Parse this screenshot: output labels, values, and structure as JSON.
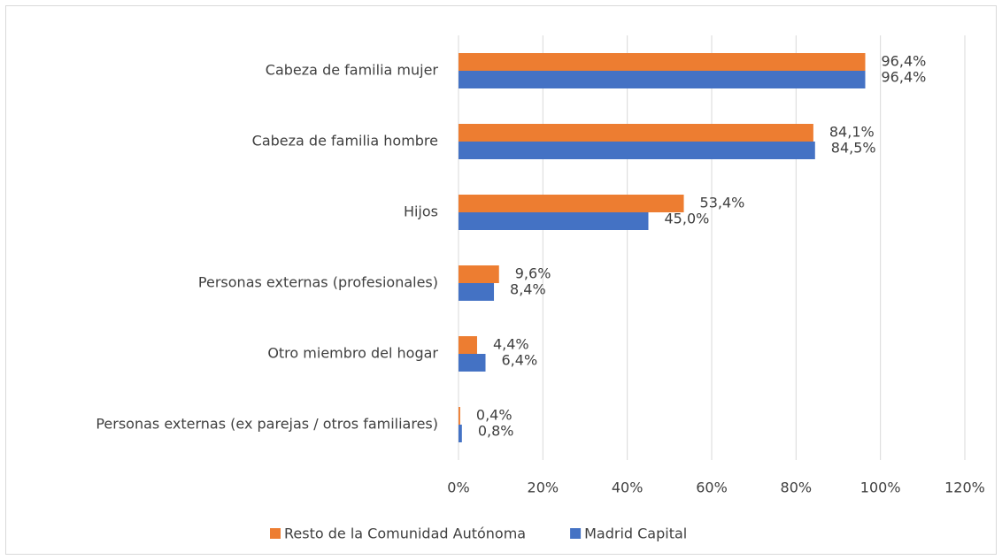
{
  "chart_data": {
    "type": "bar",
    "orientation": "horizontal",
    "categories": [
      "Cabeza de familia mujer",
      "Cabeza de familia hombre",
      "Hijos",
      "Personas externas (profesionales)",
      "Otro miembro del hogar",
      "Personas externas (ex parejas / otros familiares)"
    ],
    "series": [
      {
        "name": "Resto de la Comunidad Autónoma",
        "color": "#ed7d31",
        "values": [
          96.4,
          84.1,
          53.4,
          9.6,
          4.4,
          0.4
        ],
        "value_labels": [
          "96,4%",
          "84,1%",
          "53,4%",
          "9,6%",
          "4,4%",
          "0,4%"
        ]
      },
      {
        "name": "Madrid Capital",
        "color": "#4472c4",
        "values": [
          96.4,
          84.5,
          45.0,
          8.4,
          6.4,
          0.8
        ],
        "value_labels": [
          "96,4%",
          "84,5%",
          "45,0%",
          "8,4%",
          "6,4%",
          "0,8%"
        ]
      }
    ],
    "xlim": [
      0,
      120
    ],
    "xticks": [
      {
        "value": 0,
        "label": "0%"
      },
      {
        "value": 20,
        "label": "20%"
      },
      {
        "value": 40,
        "label": "40%"
      },
      {
        "value": 60,
        "label": "60%"
      },
      {
        "value": 80,
        "label": "80%"
      },
      {
        "value": 100,
        "label": "100%"
      },
      {
        "value": 120,
        "label": "120%"
      }
    ],
    "grid": true,
    "legend": "bottom"
  }
}
